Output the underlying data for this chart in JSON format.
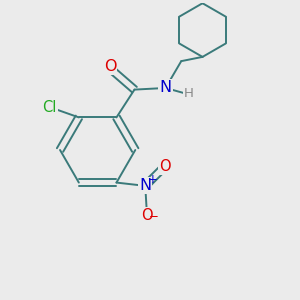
{
  "background_color": "#ebebeb",
  "bond_color": "#3a7a7a",
  "bond_width": 1.4,
  "atom_colors": {
    "O": "#dd0000",
    "N": "#0000cc",
    "Cl": "#22aa22",
    "H": "#888888",
    "C": "#3a7a7a"
  },
  "font_size": 10.5
}
